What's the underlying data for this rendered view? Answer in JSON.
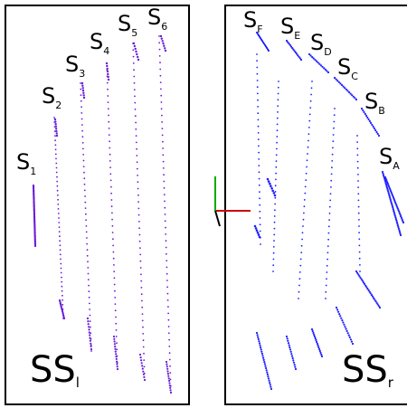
{
  "colors": {
    "left_points": "#6a1bd6",
    "right_points": "#1f1fff",
    "frame": "#000000",
    "axis_x": "#cc0000",
    "axis_y": "#00aa00",
    "axis_z": "#000000"
  },
  "left_panel": {
    "title_main": "SS",
    "title_sub": "l",
    "labels": [
      {
        "main": "S",
        "sub": "1"
      },
      {
        "main": "S",
        "sub": "2"
      },
      {
        "main": "S",
        "sub": "3"
      },
      {
        "main": "S",
        "sub": "4"
      },
      {
        "main": "S",
        "sub": "5"
      },
      {
        "main": "S",
        "sub": "6"
      }
    ]
  },
  "right_panel": {
    "title_main": "SS",
    "title_sub": "r",
    "labels": [
      {
        "main": "S",
        "sub": "F"
      },
      {
        "main": "S",
        "sub": "E"
      },
      {
        "main": "S",
        "sub": "D"
      },
      {
        "main": "S",
        "sub": "C"
      },
      {
        "main": "S",
        "sub": "B"
      },
      {
        "main": "S",
        "sub": "A"
      }
    ]
  }
}
